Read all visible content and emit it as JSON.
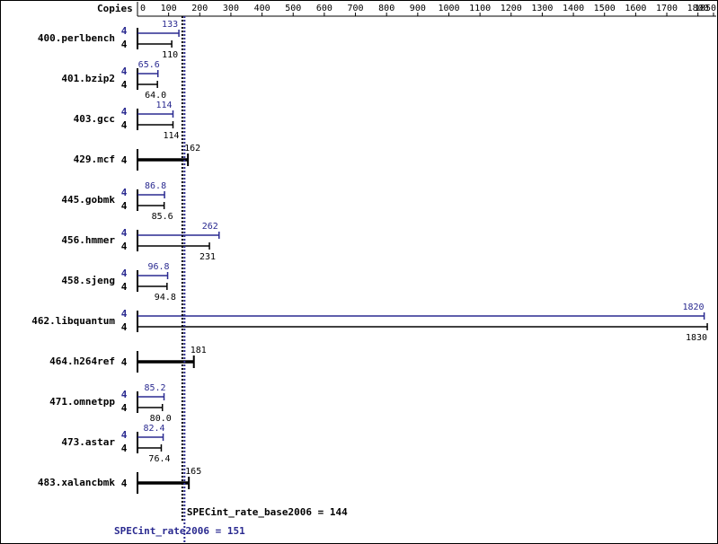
{
  "chart_data": {
    "type": "bar",
    "orientation": "horizontal",
    "copies_label": "Copies",
    "categories": [
      "400.perlbench",
      "401.bzip2",
      "403.gcc",
      "429.mcf",
      "445.gobmk",
      "456.hmmer",
      "458.sjeng",
      "462.libquantum",
      "464.h264ref",
      "471.omnetpp",
      "473.astar",
      "483.xalancbmk"
    ],
    "series": [
      {
        "color": "#2a2a90",
        "copies": [
          4,
          4,
          4,
          null,
          4,
          4,
          4,
          4,
          null,
          4,
          4,
          null
        ],
        "values": [
          133,
          65.6,
          114,
          null,
          86.8,
          262,
          96.8,
          1820,
          null,
          85.2,
          82.4,
          null
        ]
      },
      {
        "color": "#000000",
        "copies": [
          4,
          4,
          4,
          4,
          4,
          4,
          4,
          4,
          4,
          4,
          4,
          4
        ],
        "values": [
          110,
          64.0,
          114,
          162,
          85.6,
          231,
          94.8,
          1830,
          181,
          80.0,
          76.4,
          165
        ],
        "value_labels": [
          "110",
          "64.0",
          "114",
          "162",
          "85.6",
          "231",
          "94.8",
          "1830",
          "181",
          "80.0",
          "76.4",
          "165"
        ]
      }
    ],
    "xlim": [
      0,
      1850
    ],
    "xticks": [
      0,
      100,
      200,
      300,
      400,
      500,
      600,
      700,
      800,
      900,
      1000,
      1100,
      1200,
      1300,
      1400,
      1500,
      1600,
      1700,
      1800,
      1850
    ],
    "reference_lines": [
      {
        "value": 144,
        "label": "SPECint_rate_base2006 = 144",
        "color": "#000000"
      },
      {
        "value": 151,
        "label": "SPECint_rate2006 = 151",
        "color": "#2a2a90"
      }
    ]
  }
}
